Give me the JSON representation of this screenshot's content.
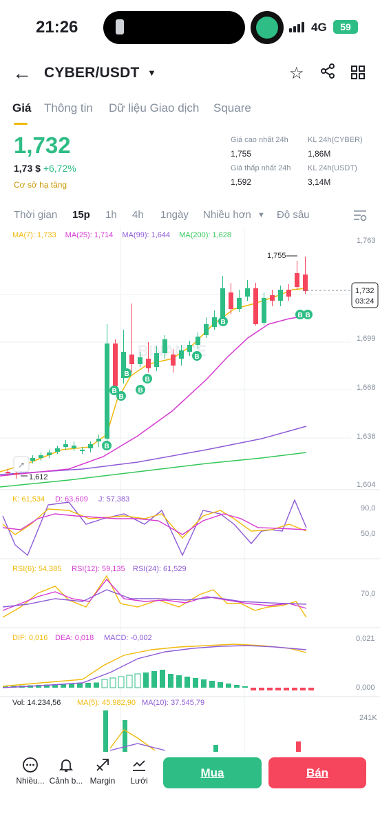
{
  "status_bar": {
    "time": "21:26",
    "network": "4G",
    "battery": "59"
  },
  "header": {
    "pair": "CYBER/USDT"
  },
  "tabs": [
    "Giá",
    "Thông tin",
    "Dữ liệu Giao dịch",
    "Square"
  ],
  "ticker": {
    "price": "1,732",
    "usd": "1,73 $",
    "change": "+6,72%",
    "tag": "Cơ sở hạ tầng",
    "stats": [
      {
        "label": "Giá cao nhất 24h",
        "value": "1,755"
      },
      {
        "label": "KL 24h(CYBER)",
        "value": "1,86M"
      },
      {
        "label": "Giá thấp nhất 24h",
        "value": "1,592"
      },
      {
        "label": "KL 24h(USDT)",
        "value": "3,14M"
      }
    ]
  },
  "timebar": [
    "Thời gian",
    "15p",
    "1h",
    "4h",
    "1ngày",
    "Nhiều hơn",
    "Độ sâu"
  ],
  "ma_legend": [
    {
      "text": "MA(7): 1,733",
      "color": "#f0b90b"
    },
    {
      "text": "MA(25): 1,714",
      "color": "#d63bd1"
    },
    {
      "text": "MA(99): 1,644",
      "color": "#8e5ad6"
    },
    {
      "text": "MA(200): 1,628",
      "color": "#34c759"
    }
  ],
  "price_axis": [
    "1,763",
    "1,699",
    "1,668",
    "1,636",
    "1,604"
  ],
  "price_box": {
    "price": "1,732",
    "countdown": "03:24"
  },
  "high_label": "1,755",
  "low_label": "1,612",
  "watermark": "BINANCE",
  "buy_marker": "B",
  "kdj": {
    "legend": [
      "K: 61,534",
      "D: 63,609",
      "J: 57,383"
    ],
    "axis": [
      "90,0",
      "50,0"
    ]
  },
  "rsi": {
    "legend": [
      "RSI(6): 54,385",
      "RSI(12): 59,135",
      "RSI(24): 61,529"
    ],
    "axis": [
      "70,0"
    ]
  },
  "macd": {
    "legend": [
      "DIF: 0,016",
      "DEA: 0,018",
      "MACD: -0,002"
    ],
    "axis": [
      "0,021",
      "0,000"
    ]
  },
  "vol": {
    "legend": [
      "Vol: 14.234,56",
      "MA(5): 45.982,90",
      "MA(10): 37.545,79"
    ],
    "axis": [
      "241K"
    ]
  },
  "bottom": {
    "items": [
      "Nhiều...",
      "Cảnh b...",
      "Margin",
      "Lưới"
    ],
    "buy": "Mua",
    "sell": "Bán"
  },
  "colors": {
    "up": "#2ebd85",
    "down": "#f6465d",
    "accent": "#f0b90b"
  }
}
